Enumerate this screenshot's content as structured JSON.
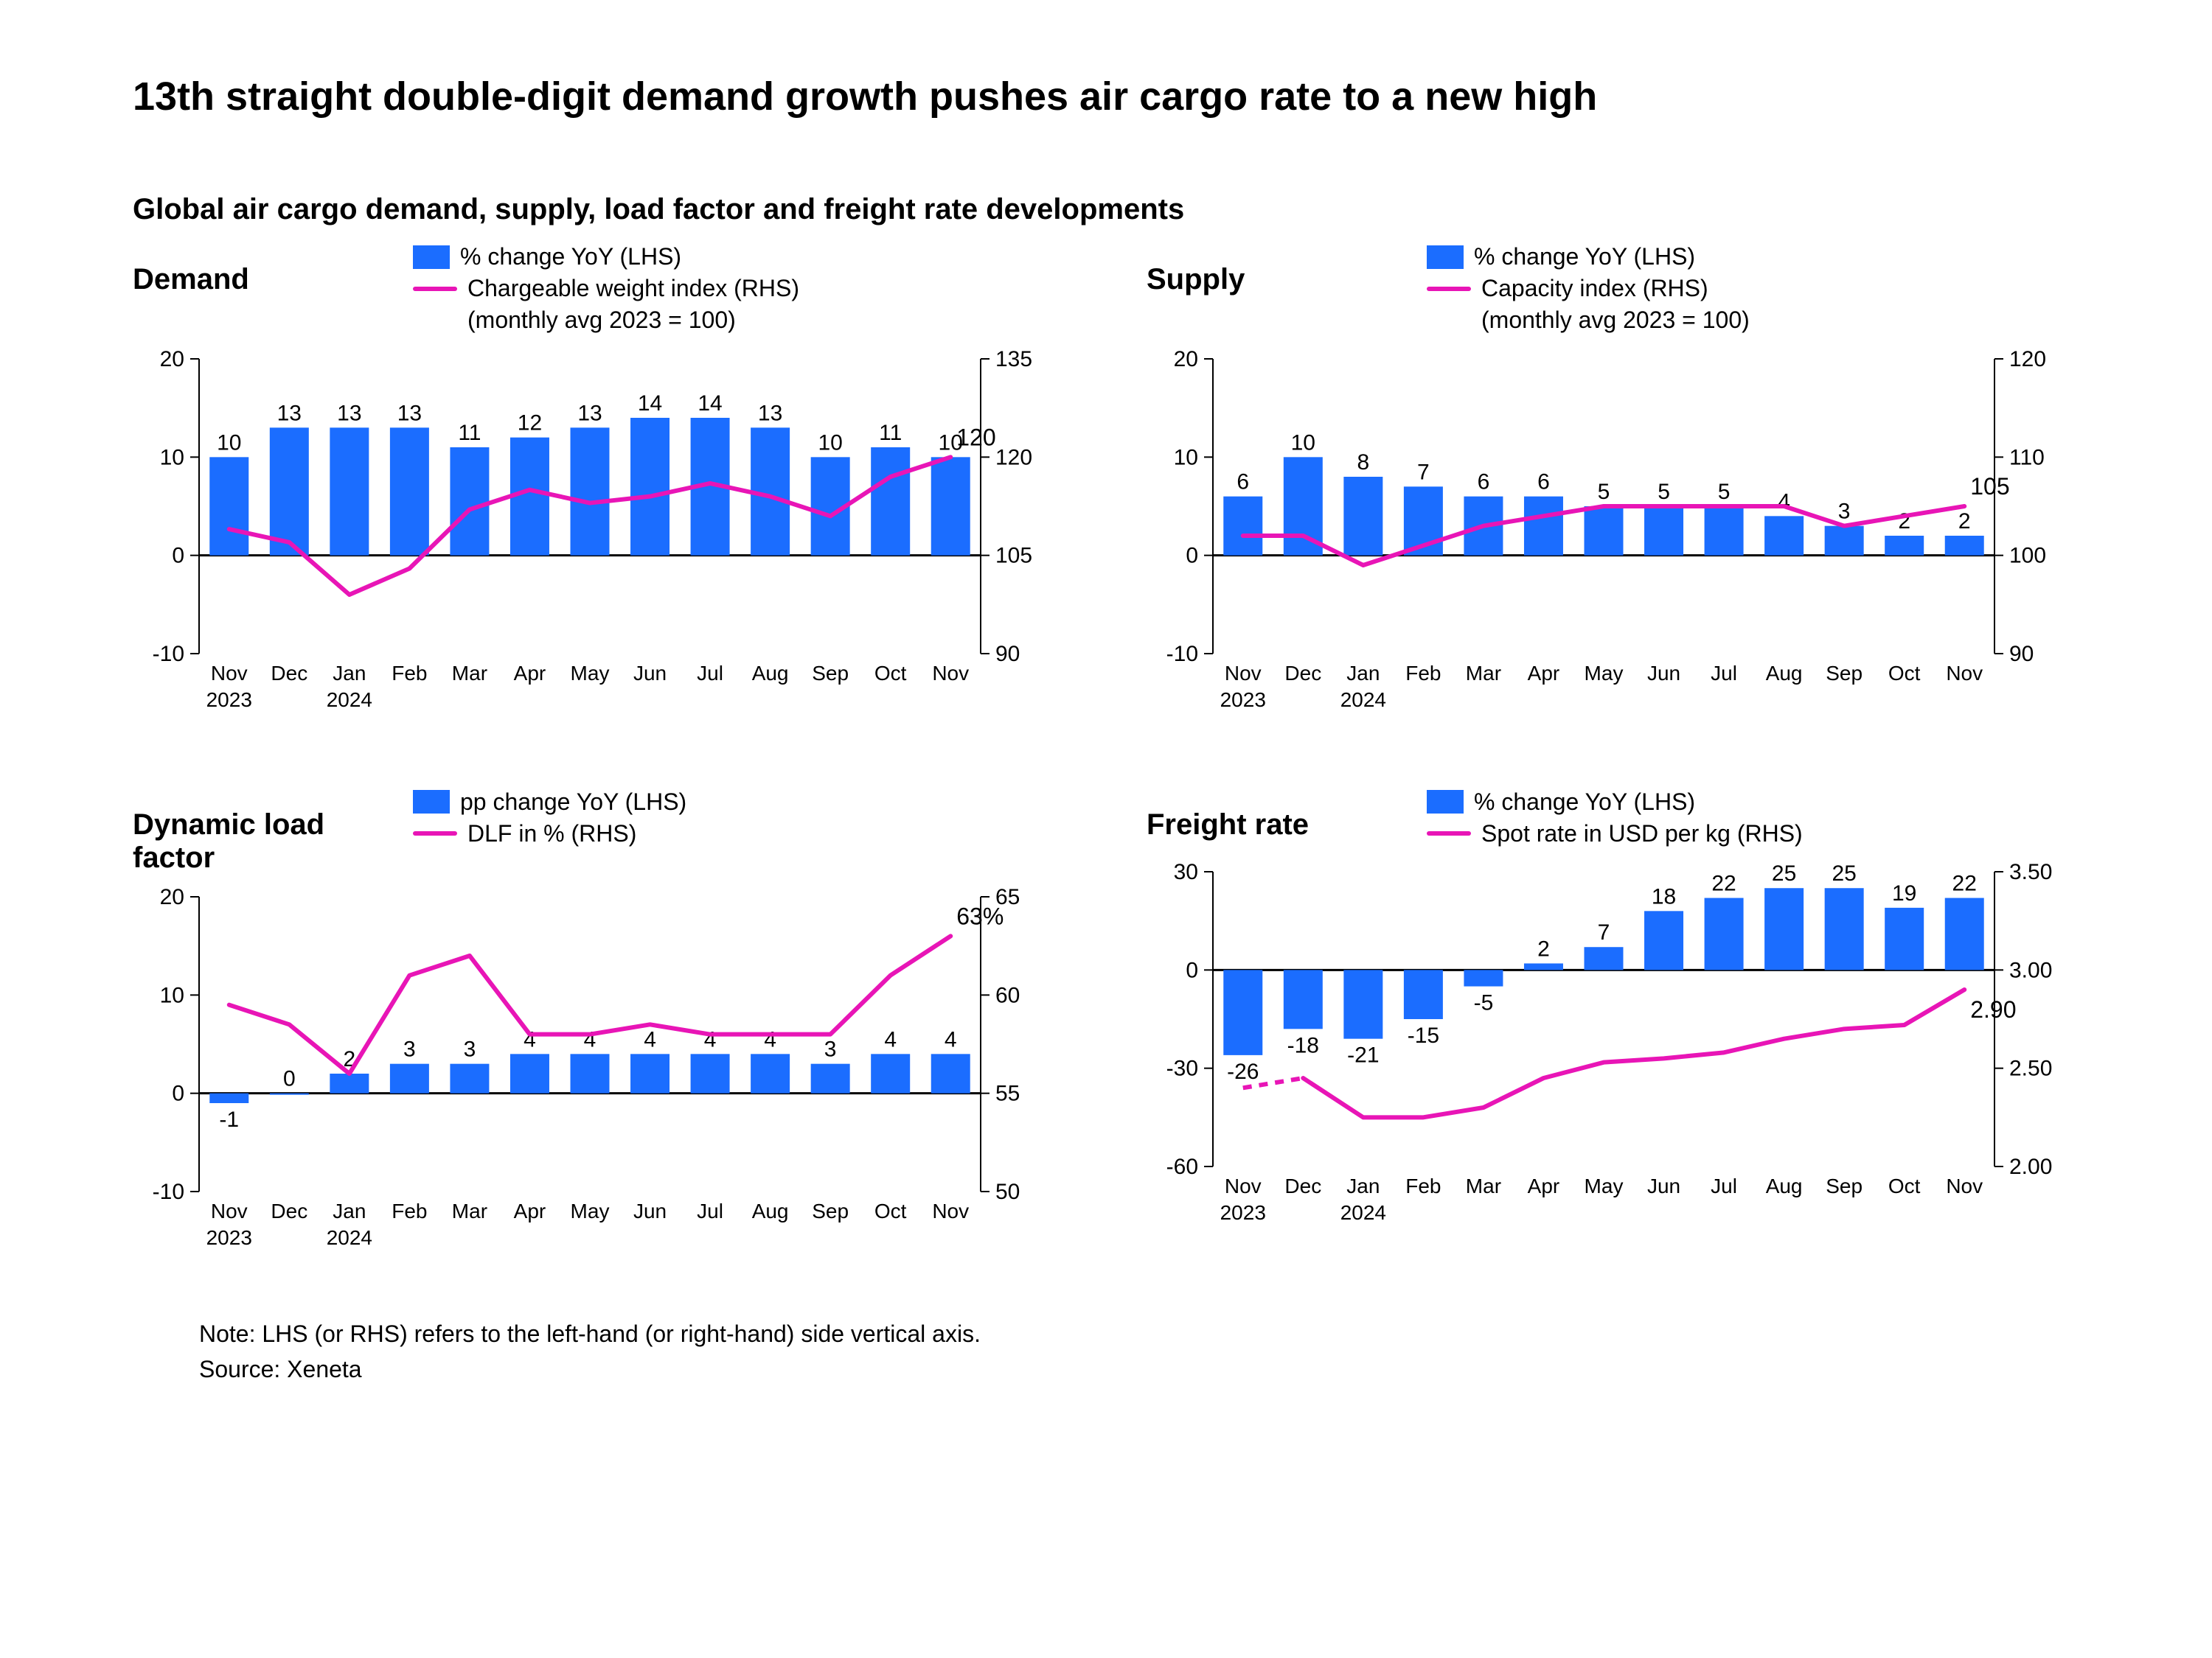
{
  "title": "13th straight double-digit demand growth pushes air cargo rate to a new high",
  "subtitle": "Global air cargo demand, supply, load factor and freight rate developments",
  "note": "Note: LHS (or RHS) refers to the left-hand (or right-hand) side vertical axis.",
  "source": "Source:  Xeneta",
  "categories": [
    "Nov",
    "Dec",
    "Jan",
    "Feb",
    "Mar",
    "Apr",
    "May",
    "Jun",
    "Jul",
    "Aug",
    "Sep",
    "Oct",
    "Nov"
  ],
  "year_labels": {
    "0": "2023",
    "2": "2024"
  },
  "colors": {
    "bar": "#1b6dff",
    "line": "#e815b6",
    "axis": "#000000",
    "text": "#000000",
    "bg": "#ffffff"
  },
  "label_fontsize": 30,
  "title_fontsize": 54,
  "panel_title_fontsize": 40,
  "line_width": 6,
  "bar_width_ratio": 0.65,
  "panels": {
    "demand": {
      "title": "Demand",
      "legend_bar": "% change YoY (LHS)",
      "legend_line": "Chargeable weight index (RHS)",
      "legend_line_sub": "(monthly avg 2023 = 100)",
      "lhs": {
        "min": -10,
        "max": 20,
        "ticks": [
          -10,
          0,
          10,
          20
        ]
      },
      "rhs": {
        "min": 90,
        "max": 135,
        "ticks": [
          90,
          105,
          120,
          135
        ]
      },
      "bars": [
        10,
        13,
        13,
        13,
        11,
        12,
        13,
        14,
        14,
        13,
        10,
        11,
        10
      ],
      "bar_labels": [
        "10",
        "13",
        "13",
        "13",
        "11",
        "12",
        "13",
        "14",
        "14",
        "13",
        "10",
        "11",
        "10"
      ],
      "line": [
        109,
        107,
        99,
        103,
        112,
        115,
        113,
        114,
        116,
        114,
        111,
        117,
        120
      ],
      "line_end_label": "120",
      "line_end_label_pos": "above"
    },
    "supply": {
      "title": "Supply",
      "legend_bar": "% change YoY (LHS)",
      "legend_line": "Capacity index (RHS)",
      "legend_line_sub": "(monthly avg 2023 = 100)",
      "lhs": {
        "min": -10,
        "max": 20,
        "ticks": [
          -10,
          0,
          10,
          20
        ]
      },
      "rhs": {
        "min": 90,
        "max": 120,
        "ticks": [
          90,
          100,
          110,
          120
        ]
      },
      "bars": [
        6,
        10,
        8,
        7,
        6,
        6,
        5,
        5,
        5,
        4,
        3,
        2,
        2
      ],
      "bar_labels": [
        "6",
        "10",
        "8",
        "7",
        "6",
        "6",
        "5",
        "5",
        "5",
        "4",
        "3",
        "2",
        "2"
      ],
      "line": [
        102,
        102,
        99,
        101,
        103,
        104,
        105,
        105,
        105,
        105,
        103,
        104,
        105
      ],
      "line_end_label": "105",
      "line_end_label_pos": "above"
    },
    "dlf": {
      "title": "Dynamic load factor",
      "legend_bar": "pp change YoY (LHS)",
      "legend_line": "DLF in % (RHS)",
      "legend_line_sub": "",
      "lhs": {
        "min": -10,
        "max": 20,
        "ticks": [
          -10,
          0,
          10,
          20
        ]
      },
      "rhs": {
        "min": 50,
        "max": 65,
        "ticks": [
          50,
          55,
          60,
          65
        ]
      },
      "bars": [
        -1,
        0,
        2,
        3,
        3,
        4,
        4,
        4,
        4,
        4,
        3,
        4,
        4
      ],
      "bar_labels": [
        "-1",
        "0",
        "2",
        "3",
        "3",
        "4",
        "4",
        "4",
        "4",
        "4",
        "3",
        "4",
        "4"
      ],
      "line": [
        59.5,
        58.5,
        56,
        61,
        62,
        58,
        58,
        58.5,
        58,
        58,
        58,
        61,
        63
      ],
      "line_end_label": "63%",
      "line_end_label_pos": "above"
    },
    "rate": {
      "title": "Freight rate",
      "legend_bar": "% change YoY (LHS)",
      "legend_line": "Spot rate in USD per kg (RHS)",
      "legend_line_sub": "",
      "lhs": {
        "min": -60,
        "max": 30,
        "ticks": [
          -60,
          -30,
          0,
          30
        ]
      },
      "rhs": {
        "min": 2.0,
        "max": 3.5,
        "ticks": [
          2.0,
          2.5,
          3.0,
          3.5
        ],
        "tick_fmt": "fixed2"
      },
      "bars": [
        -26,
        -18,
        -21,
        -15,
        -5,
        2,
        7,
        18,
        22,
        25,
        25,
        19,
        22
      ],
      "bar_labels": [
        "-26",
        "-18",
        "-21",
        "-15",
        "-5",
        "2",
        "7",
        "18",
        "22",
        "25",
        "25",
        "19",
        "22"
      ],
      "line": [
        2.4,
        2.45,
        2.25,
        2.25,
        2.3,
        2.45,
        2.53,
        2.55,
        2.58,
        2.65,
        2.7,
        2.72,
        2.9
      ],
      "line_break_after": 0,
      "line_end_label": "2.90",
      "line_end_label_pos": "below"
    }
  }
}
